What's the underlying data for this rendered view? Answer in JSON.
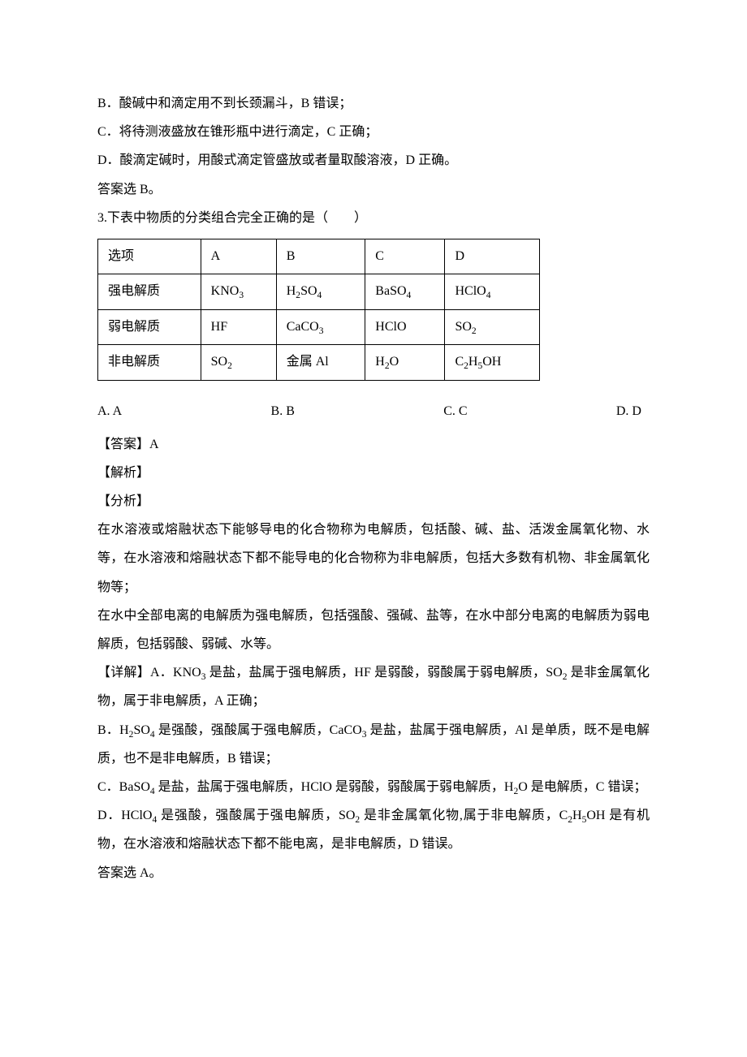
{
  "lines": {
    "lB": "B．酸碱中和滴定用不到长颈漏斗，B 错误；",
    "lC": "C．将待测液盛放在锥形瓶中进行滴定，C 正确；",
    "lD": "D．酸滴定碱时，用酸式滴定管盛放或者量取酸溶液，D 正确。",
    "ansB": "答案选 B。",
    "q3": "3.下表中物质的分类组合完全正确的是（　　）"
  },
  "table": {
    "r0": {
      "c0": "选项",
      "c1": "A",
      "c2": "B",
      "c3": "C",
      "c4": "D"
    },
    "r1": {
      "c0": "强电解质",
      "c1": "KNO",
      "c1s": "3",
      "c2a": "H",
      "c2s1": "2",
      "c2b": "SO",
      "c2s2": "4",
      "c3a": "BaSO",
      "c3s": "4",
      "c4a": "HClO",
      "c4s": "4"
    },
    "r2": {
      "c0": "弱电解质",
      "c1": "HF",
      "c2a": "CaCO",
      "c2s": "3",
      "c3": "HClO",
      "c4a": "SO",
      "c4s": "2"
    },
    "r3": {
      "c0": "非电解质",
      "c1a": "SO",
      "c1s": "2",
      "c2": "金属 Al",
      "c3a": "H",
      "c3s": "2",
      "c3b": "O",
      "c4a": "C",
      "c4s1": "2",
      "c4b": "H",
      "c4s2": "5",
      "c4c": "OH"
    }
  },
  "choices": {
    "A": "A. A",
    "B": "B. B",
    "C": "C. C",
    "D": "D. D"
  },
  "after": {
    "ans": "【答案】A",
    "jiexi": "【解析】",
    "fenxi": "【分析】",
    "p1": "在水溶液或熔融状态下能够导电的化合物称为电解质，包括酸、碱、盐、活泼金属氧化物、水等，在水溶液和熔融状态下都不能导电的化合物称为非电解质，包括大多数有机物、非金属氧化物等；",
    "p2": "在水中全部电离的电解质为强电解质，包括强酸、强碱、盐等，在水中部分电离的电解质为弱电解质，包括弱酸、弱碱、水等。",
    "detail": "【详解】"
  },
  "detailA": {
    "t1": "A．KNO",
    "s1": "3",
    "t2": " 是盐，盐属于强电解质，HF 是弱酸，弱酸属于弱电解质，SO",
    "s2": "2",
    "t3": " 是非金属氧化物，属于非电解质，A 正确；"
  },
  "detailB": {
    "t1": "B．H",
    "s1": "2",
    "t2": "SO",
    "s2": "4",
    "t3": " 是强酸，强酸属于强电解质，CaCO",
    "s3": "3",
    "t4": " 是盐，盐属于强电解质，Al 是单质，既不是电解质，也不是非电解质，B 错误；"
  },
  "detailC": {
    "t1": "C．BaSO",
    "s1": "4",
    "t2": " 是盐，盐属于强电解质，HClO 是弱酸，弱酸属于弱电解质，H",
    "s2": "2",
    "t3": "O 是电解质，C 错误；"
  },
  "detailD": {
    "t1": "D．HClO",
    "s1": "4",
    "t2": " 是强酸，强酸属于强电解质，SO",
    "s2": "2",
    "t3": " 是非金属氧化物,属于非电解质，C",
    "s3": "2",
    "t4": "H",
    "s4": "5",
    "t5": "OH 是有机物，在水溶液和熔融状态下都不能电离，是非电解质，D 错误。"
  },
  "finalAns": "答案选 A。"
}
